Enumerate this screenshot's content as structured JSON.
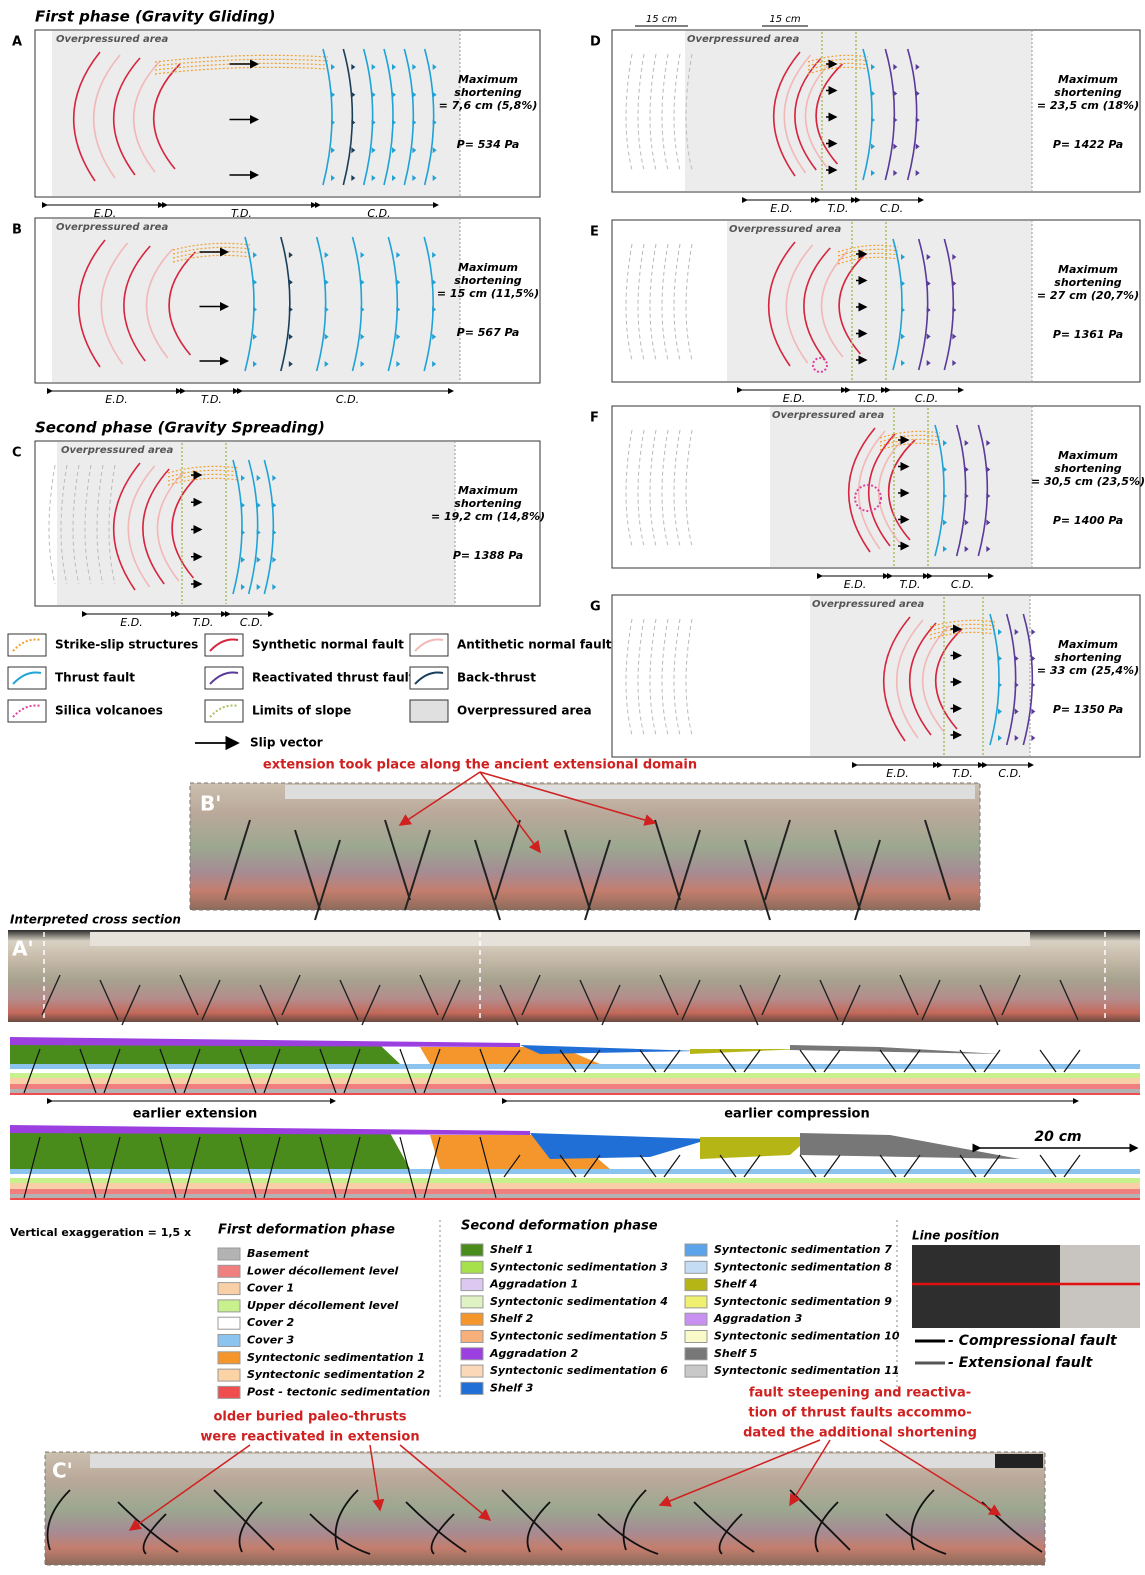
{
  "phases": {
    "first": "First phase (Gravity Gliding)",
    "second": "Second phase (Gravity Spreading)"
  },
  "panels": [
    {
      "letter": "A",
      "area": "Overpressured area",
      "shortening": [
        "Maximum",
        "shortening",
        "= 7,6 cm (5,8%)"
      ],
      "pressure": "P= 534 Pa",
      "domains": [
        "E.D.",
        "T.D.",
        "C.D."
      ]
    },
    {
      "letter": "B",
      "area": "Overpressured area",
      "shortening": [
        "Maximum",
        "shortening",
        "= 15 cm (11,5%)"
      ],
      "pressure": "P= 567 Pa",
      "domains": [
        "E.D.",
        "T.D.",
        "C.D."
      ]
    },
    {
      "letter": "C",
      "area": "Overpressured area",
      "shortening": [
        "Maximum",
        "shortening",
        "= 19,2 cm (14,8%)"
      ],
      "pressure": "P= 1388 Pa",
      "domains": [
        "E.D.",
        "T.D.",
        "C.D."
      ]
    },
    {
      "letter": "D",
      "area": "Overpressured area",
      "shortening": [
        "Maximum",
        "shortening",
        "= 23,5 cm (18%)"
      ],
      "pressure": "P= 1422 Pa",
      "domains": [
        "E.D.",
        "T.D.",
        "C.D."
      ]
    },
    {
      "letter": "E",
      "area": "Overpressured area",
      "shortening": [
        "Maximum",
        "shortening",
        "= 27 cm (20,7%)"
      ],
      "pressure": "P= 1361 Pa",
      "domains": [
        "E.D.",
        "T.D.",
        "C.D."
      ]
    },
    {
      "letter": "F",
      "area": "Overpressured area",
      "shortening": [
        "Maximum",
        "shortening",
        "= 30,5 cm (23,5%)"
      ],
      "pressure": "P= 1400 Pa",
      "domains": [
        "E.D.",
        "T.D.",
        "C.D."
      ]
    },
    {
      "letter": "G",
      "area": "Overpressured area",
      "shortening": [
        "Maximum",
        "shortening",
        "= 33 cm (25,4%)"
      ],
      "pressure": "P= 1350 Pa",
      "domains": [
        "E.D.",
        "T.D.",
        "C.D."
      ]
    }
  ],
  "scale_labels": [
    "15 cm",
    "15 cm"
  ],
  "legend": [
    {
      "label": "Strike-slip structures",
      "color": "#f0a030",
      "style": "dotted"
    },
    {
      "label": "Synthetic normal fault",
      "color": "#d6263f",
      "style": "solid"
    },
    {
      "label": "Antithetic normal fault",
      "color": "#f2b8b8",
      "style": "solid"
    },
    {
      "label": "Thrust fault",
      "color": "#1fa3d6",
      "style": "solid"
    },
    {
      "label": "Reactivated thrust fault",
      "color": "#5a3a9a",
      "style": "solid"
    },
    {
      "label": "Back-thrust",
      "color": "#1a3f5a",
      "style": "solid"
    },
    {
      "label": "Silica volcanoes",
      "color": "#e0409a",
      "style": "dotted"
    },
    {
      "label": "Limits of slope",
      "color": "#a8c060",
      "style": "dotted"
    },
    {
      "label": "Overpressured area",
      "color": "#e0e0e0",
      "style": "fill"
    },
    {
      "label": "Slip vector",
      "color": "#000000",
      "style": "arrow"
    }
  ],
  "sections": {
    "top_note": "extension took place along the ancient extensional domain",
    "b_label": "B'",
    "interpreted": "Interpreted cross section",
    "a_label": "A'",
    "earlier_extension": "earlier extension",
    "earlier_compression": "earlier compression",
    "scale": "20 cm",
    "exaggeration": "Vertical exaggeration = 1,5 x",
    "left_note": [
      "older buried paleo-thrusts",
      "were reactivated in extension"
    ],
    "right_note": [
      "fault steepening and reactiva-",
      "tion of thrust faults accommo-",
      "dated the additional shortening"
    ],
    "c_label": "C'"
  },
  "layers": {
    "first_title": "First deformation phase",
    "first": [
      {
        "label": "Basement",
        "color": "#b3b3b3"
      },
      {
        "label": "Lower décollement level",
        "color": "#f08080"
      },
      {
        "label": "Cover 1",
        "color": "#f9cfa8"
      },
      {
        "label": "Upper décollement level",
        "color": "#c8f08c"
      },
      {
        "label": "Cover 2",
        "color": "#ffffff"
      },
      {
        "label": "Cover 3",
        "color": "#8cc4f0"
      },
      {
        "label": "Syntectonic sedimentation 1",
        "color": "#f5962d"
      },
      {
        "label": "Syntectonic sedimentation 2",
        "color": "#fbd3a4"
      },
      {
        "label": "Post - tectonic sedimentation",
        "color": "#f04e4e"
      }
    ],
    "second_title": "Second deformation phase",
    "second": [
      {
        "label": "Shelf 1",
        "color": "#4a8c1c"
      },
      {
        "label": "Syntectonic sedimentation 3",
        "color": "#a6e04a"
      },
      {
        "label": "Aggradation 1",
        "color": "#dcc8f0"
      },
      {
        "label": "Syntectonic sedimentation 4",
        "color": "#dff2c4"
      },
      {
        "label": "Shelf 2",
        "color": "#f5962d"
      },
      {
        "label": "Syntectonic sedimentation 5",
        "color": "#f7b07a"
      },
      {
        "label": "Aggradation 2",
        "color": "#9b3fe0"
      },
      {
        "label": "Syntectonic sedimentation 6",
        "color": "#fbd8b8"
      },
      {
        "label": "Shelf 3",
        "color": "#1f6fd6"
      },
      {
        "label": "Syntectonic sedimentation 7",
        "color": "#5ba3ea"
      },
      {
        "label": "Syntectonic sedimentation 8",
        "color": "#c4dcf4"
      },
      {
        "label": "Shelf 4",
        "color": "#b5b515"
      },
      {
        "label": "Syntectonic sedimentation 9",
        "color": "#f0f070"
      },
      {
        "label": "Aggradation 3",
        "color": "#c890f0"
      },
      {
        "label": "Syntectonic sedimentation 10",
        "color": "#fafac8"
      },
      {
        "label": "Shelf 5",
        "color": "#777777"
      },
      {
        "label": "Syntectonic sedimentation 11",
        "color": "#c8c8c8"
      }
    ],
    "line_position": "Line position",
    "faults": [
      "- Compressional fault",
      "- Extensional fault"
    ]
  }
}
